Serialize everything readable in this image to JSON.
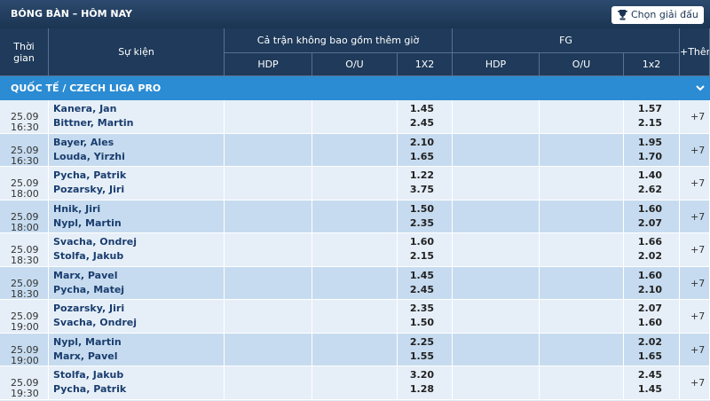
{
  "header": {
    "title": "BÓNG BÀN – HÔM NAY",
    "button": "Chọn giải đấu"
  },
  "table": {
    "columns": {
      "time": "Thời gian",
      "event": "Sự kiện",
      "full_time": "Cả trận không bao gồm thêm giờ",
      "fg": "FG",
      "more": "+Thêm"
    },
    "subcolumns": [
      "HDP",
      "O/U",
      "1X2",
      "HDP",
      "O/U",
      "1x2"
    ],
    "league": "QUỐC TẾ / CZECH LIGA PRO",
    "rows": [
      {
        "date": "25.09",
        "time": "16:30",
        "home": "Kanera, Jan",
        "away": "Bittner, Martin",
        "ft_1x2": [
          "1.45",
          "2.45"
        ],
        "fg_1x2": [
          "1.57",
          "2.15"
        ],
        "more": "+7"
      },
      {
        "date": "25.09",
        "time": "16:30",
        "home": "Bayer, Ales",
        "away": "Louda, Yirzhi",
        "ft_1x2": [
          "2.10",
          "1.65"
        ],
        "fg_1x2": [
          "1.95",
          "1.70"
        ],
        "more": "+7"
      },
      {
        "date": "25.09",
        "time": "18:00",
        "home": "Pycha, Patrik",
        "away": "Pozarsky, Jiri",
        "ft_1x2": [
          "1.22",
          "3.75"
        ],
        "fg_1x2": [
          "1.40",
          "2.62"
        ],
        "more": "+7"
      },
      {
        "date": "25.09",
        "time": "18:00",
        "home": "Hnik, Jiri",
        "away": "Nypl, Martin",
        "ft_1x2": [
          "1.50",
          "2.35"
        ],
        "fg_1x2": [
          "1.60",
          "2.07"
        ],
        "more": "+7"
      },
      {
        "date": "25.09",
        "time": "18:30",
        "home": "Svacha, Ondrej",
        "away": "Stolfa, Jakub",
        "ft_1x2": [
          "1.60",
          "2.15"
        ],
        "fg_1x2": [
          "1.66",
          "2.02"
        ],
        "more": "+7"
      },
      {
        "date": "25.09",
        "time": "18:30",
        "home": "Marx, Pavel",
        "away": "Pycha, Matej",
        "ft_1x2": [
          "1.45",
          "2.45"
        ],
        "fg_1x2": [
          "1.60",
          "2.10"
        ],
        "more": "+7"
      },
      {
        "date": "25.09",
        "time": "19:00",
        "home": "Pozarsky, Jiri",
        "away": "Svacha, Ondrej",
        "ft_1x2": [
          "2.35",
          "1.50"
        ],
        "fg_1x2": [
          "2.07",
          "1.60"
        ],
        "more": "+7"
      },
      {
        "date": "25.09",
        "time": "19:00",
        "home": "Nypl, Martin",
        "away": "Marx, Pavel",
        "ft_1x2": [
          "2.25",
          "1.55"
        ],
        "fg_1x2": [
          "2.02",
          "1.65"
        ],
        "more": "+7"
      },
      {
        "date": "25.09",
        "time": "19:30",
        "home": "Stolfa, Jakub",
        "away": "Pycha, Patrik",
        "ft_1x2": [
          "3.20",
          "1.28"
        ],
        "fg_1x2": [
          "2.45",
          "1.45"
        ],
        "more": "+7"
      }
    ]
  }
}
